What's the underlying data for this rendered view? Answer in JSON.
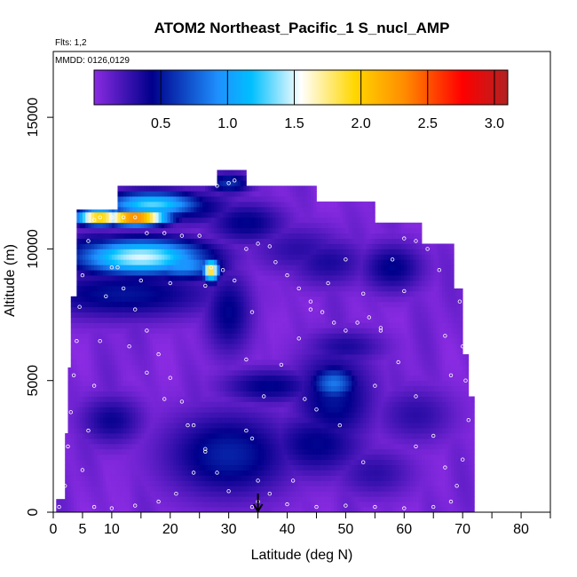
{
  "chart_data": {
    "type": "heatmap",
    "title": "ATOM2 Northeast_Pacific_1 S_nucl_AMP",
    "flights_label": "Flts: 1,2",
    "dates_label": "MMDD: 0126,0129",
    "xlabel": "Latitude (deg N)",
    "ylabel": "Altitude (m)",
    "xlim": [
      0,
      85
    ],
    "ylim": [
      0,
      17500
    ],
    "x_ticks": [
      0,
      5,
      10,
      20,
      30,
      40,
      50,
      60,
      70,
      80
    ],
    "x_minor_ticks": [
      15,
      25,
      35,
      45,
      55,
      65,
      75,
      85
    ],
    "y_ticks": [
      0,
      5000,
      10000,
      15000
    ],
    "grid": false,
    "colorbar": {
      "placement": "top",
      "range": [
        0,
        3.1
      ],
      "ticks": [
        0.5,
        1.0,
        1.5,
        2.0,
        2.5,
        3.0
      ],
      "tick_labels": [
        "0.5",
        "1.0",
        "1.5",
        "2.0",
        "2.5",
        "3.0"
      ],
      "colors": [
        "#8a2be2",
        "#00008b",
        "#1e90ff",
        "#00bfff",
        "#ffffff",
        "#ffd700",
        "#ff8c00",
        "#ff0000",
        "#b22222"
      ]
    },
    "marker": {
      "latitude": 35,
      "label_glyph": "arrow"
    },
    "column_extents": [
      {
        "x0": 0.5,
        "x1": 2,
        "ytop": 500
      },
      {
        "x0": 1,
        "x1": 2.5,
        "ytop": 3000
      },
      {
        "x0": 1.5,
        "x1": 3,
        "ytop": 5500
      },
      {
        "x0": 2,
        "x1": 4,
        "ytop": 8200
      },
      {
        "x0": 2.5,
        "x1": 4,
        "ytop": 9800
      },
      {
        "x0": 3,
        "x1": 11,
        "ytop": 11500
      },
      {
        "x0": 11,
        "x1": 28,
        "ytop": 12400
      },
      {
        "x0": 28,
        "x1": 33,
        "ytop": 13000
      },
      {
        "x0": 33,
        "x1": 45,
        "ytop": 12400
      },
      {
        "x0": 45,
        "x1": 55,
        "ytop": 11800
      },
      {
        "x0": 55,
        "x1": 63,
        "ytop": 11000
      },
      {
        "x0": 63,
        "x1": 68.5,
        "ytop": 10200
      },
      {
        "x0": 68.5,
        "x1": 70,
        "ytop": 8500
      },
      {
        "x0": 70,
        "x1": 71,
        "ytop": 6000
      },
      {
        "x0": 71,
        "x1": 72,
        "ytop": 4400
      }
    ],
    "hotspots": [
      {
        "lat": 15,
        "alt": 9700,
        "value": 1.5,
        "sx": 8,
        "sy": 500
      },
      {
        "lat": 8,
        "alt": 9900,
        "value": 0.7,
        "sx": 5,
        "sy": 500
      },
      {
        "lat": 22,
        "alt": 9400,
        "value": 1.0,
        "sx": 5,
        "sy": 400
      },
      {
        "lat": 27,
        "alt": 9200,
        "value": 2.0,
        "sx": 1,
        "sy": 300
      },
      {
        "lat": 14,
        "alt": 11200,
        "value": 2.6,
        "sx": 4,
        "sy": 200
      },
      {
        "lat": 8,
        "alt": 11200,
        "value": 2.2,
        "sx": 3,
        "sy": 200
      },
      {
        "lat": 17,
        "alt": 11700,
        "value": 1.3,
        "sx": 6,
        "sy": 350
      },
      {
        "lat": 10,
        "alt": 11800,
        "value": 0.7,
        "sx": 5,
        "sy": 300
      },
      {
        "lat": 23,
        "alt": 11600,
        "value": 0.5,
        "sx": 6,
        "sy": 500
      },
      {
        "lat": 30,
        "alt": 12500,
        "value": 0.6,
        "sx": 3,
        "sy": 300
      },
      {
        "lat": 12,
        "alt": 8300,
        "value": 0.5,
        "sx": 12,
        "sy": 700
      },
      {
        "lat": 30,
        "alt": 7600,
        "value": 0.45,
        "sx": 3,
        "sy": 1200
      },
      {
        "lat": 48,
        "alt": 4900,
        "value": 0.85,
        "sx": 3,
        "sy": 500
      },
      {
        "lat": 48,
        "alt": 4400,
        "value": 0.5,
        "sx": 5,
        "sy": 1400
      },
      {
        "lat": 37,
        "alt": 4800,
        "value": 0.45,
        "sx": 6,
        "sy": 500
      },
      {
        "lat": 30,
        "alt": 2200,
        "value": 0.55,
        "sx": 8,
        "sy": 1200
      },
      {
        "lat": 45,
        "alt": 2600,
        "value": 0.45,
        "sx": 6,
        "sy": 900
      },
      {
        "lat": 58,
        "alt": 9300,
        "value": 0.45,
        "sx": 4,
        "sy": 700
      },
      {
        "lat": 47,
        "alt": 9500,
        "value": 0.35,
        "sx": 5,
        "sy": 700
      },
      {
        "lat": 10,
        "alt": 3500,
        "value": 0.4,
        "sx": 4,
        "sy": 700
      },
      {
        "lat": 50,
        "alt": 6300,
        "value": 0.35,
        "sx": 5,
        "sy": 500
      },
      {
        "lat": 33,
        "alt": 11000,
        "value": 0.45,
        "sx": 5,
        "sy": 600
      },
      {
        "lat": 42,
        "alt": 10000,
        "value": 0.3,
        "sx": 6,
        "sy": 700
      },
      {
        "lat": 55,
        "alt": 1500,
        "value": 0.3,
        "sx": 5,
        "sy": 700
      },
      {
        "lat": 62,
        "alt": 3700,
        "value": 0.3,
        "sx": 5,
        "sy": 800
      }
    ],
    "flight_track_samples": [
      [
        1,
        200
      ],
      [
        2,
        1000
      ],
      [
        2.5,
        2500
      ],
      [
        3,
        3800
      ],
      [
        3.5,
        5200
      ],
      [
        4,
        6500
      ],
      [
        4.5,
        7800
      ],
      [
        5,
        9000
      ],
      [
        6,
        10300
      ],
      [
        7,
        11100
      ],
      [
        8,
        11200
      ],
      [
        10,
        11200
      ],
      [
        12,
        11200
      ],
      [
        14,
        11200
      ],
      [
        16,
        10600
      ],
      [
        19,
        10600
      ],
      [
        22,
        10500
      ],
      [
        25,
        10500
      ],
      [
        27,
        9300
      ],
      [
        29,
        9200
      ],
      [
        31,
        8800
      ],
      [
        33,
        10000
      ],
      [
        35,
        10200
      ],
      [
        37,
        10100
      ],
      [
        38,
        9500
      ],
      [
        40,
        9000
      ],
      [
        42,
        8500
      ],
      [
        44,
        8000
      ],
      [
        46,
        7600
      ],
      [
        48,
        7200
      ],
      [
        50,
        6900
      ],
      [
        52,
        7200
      ],
      [
        54,
        7400
      ],
      [
        56,
        7000
      ],
      [
        58,
        9600
      ],
      [
        60,
        10400
      ],
      [
        62,
        10300
      ],
      [
        64,
        10500
      ],
      [
        66,
        11000
      ],
      [
        68,
        10900
      ],
      [
        69,
        9500
      ],
      [
        69.5,
        8000
      ],
      [
        70,
        6300
      ],
      [
        70.5,
        5000
      ],
      [
        71,
        3500
      ],
      [
        70,
        2000
      ],
      [
        69,
        1000
      ],
      [
        68,
        400
      ],
      [
        65,
        200
      ],
      [
        60,
        150
      ],
      [
        55,
        200
      ],
      [
        50,
        250
      ],
      [
        45,
        200
      ],
      [
        40,
        300
      ],
      [
        35,
        400
      ],
      [
        30,
        800
      ],
      [
        28,
        1500
      ],
      [
        26,
        2400
      ],
      [
        24,
        3300
      ],
      [
        22,
        4200
      ],
      [
        20,
        5100
      ],
      [
        18,
        6000
      ],
      [
        16,
        6900
      ],
      [
        14,
        7700
      ],
      [
        12,
        8500
      ],
      [
        10,
        9300
      ],
      [
        9,
        8200
      ],
      [
        8,
        6500
      ],
      [
        7,
        4800
      ],
      [
        6,
        3100
      ],
      [
        5,
        1600
      ],
      [
        7,
        200
      ],
      [
        10,
        150
      ],
      [
        14,
        250
      ],
      [
        18,
        400
      ],
      [
        21,
        700
      ],
      [
        24,
        1500
      ],
      [
        28,
        12400
      ],
      [
        30,
        12500
      ],
      [
        31,
        12600
      ],
      [
        26,
        8600
      ],
      [
        20,
        8700
      ],
      [
        15,
        8800
      ],
      [
        11,
        9300
      ],
      [
        13,
        6300
      ],
      [
        16,
        5300
      ],
      [
        19,
        4300
      ],
      [
        23,
        3300
      ],
      [
        26,
        2300
      ],
      [
        33,
        3100
      ],
      [
        36,
        4400
      ],
      [
        39,
        5600
      ],
      [
        42,
        6600
      ],
      [
        44,
        7700
      ],
      [
        47,
        8700
      ],
      [
        50,
        9600
      ],
      [
        53,
        8300
      ],
      [
        56,
        6900
      ],
      [
        59,
        5700
      ],
      [
        62,
        4400
      ],
      [
        65,
        2900
      ],
      [
        67,
        1700
      ],
      [
        53,
        1900
      ],
      [
        49,
        3300
      ],
      [
        45,
        3900
      ],
      [
        41,
        1200
      ],
      [
        37,
        700
      ],
      [
        43,
        4300
      ],
      [
        55,
        4800
      ],
      [
        60,
        8400
      ],
      [
        64,
        10000
      ],
      [
        66,
        9200
      ],
      [
        67,
        6700
      ],
      [
        68,
        5200
      ],
      [
        62,
        2500
      ],
      [
        34,
        7600
      ],
      [
        33,
        5800
      ],
      [
        34,
        2800
      ],
      [
        35,
        1200
      ],
      [
        34,
        200
      ]
    ]
  }
}
